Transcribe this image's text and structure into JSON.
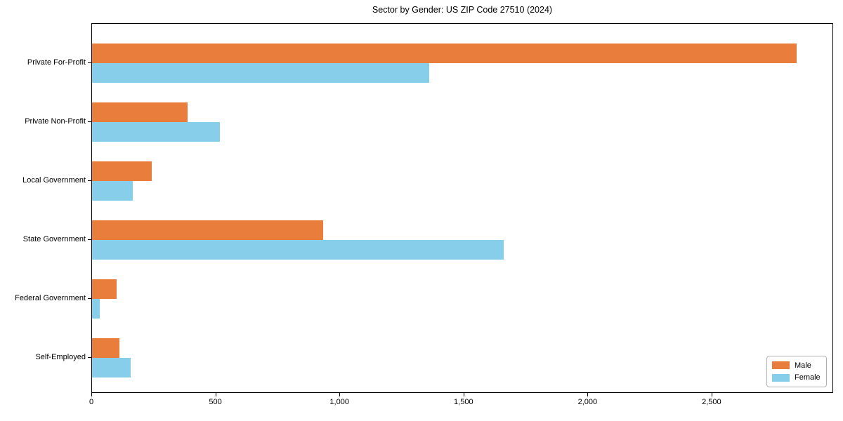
{
  "chart_data": {
    "type": "bar",
    "orientation": "horizontal",
    "title": "Sector by Gender: US ZIP Code 27510 (2024)",
    "categories": [
      "Private For-Profit",
      "Private Non-Profit",
      "Local Government",
      "State Government",
      "Federal Government",
      "Self-Employed"
    ],
    "series": [
      {
        "name": "Male",
        "color": "#E97D3C",
        "values": [
          2840,
          385,
          240,
          930,
          100,
          110
        ]
      },
      {
        "name": "Female",
        "color": "#87CEEB",
        "values": [
          1360,
          515,
          165,
          1660,
          30,
          155
        ]
      }
    ],
    "xlabel": "",
    "ylabel": "",
    "xlim": [
      0,
      2990
    ],
    "x_ticks": [
      0,
      500,
      1000,
      1500,
      2000,
      2500
    ],
    "x_tick_labels": [
      "0",
      "500",
      "1,000",
      "1,500",
      "2,000",
      "2,500"
    ],
    "grid": false,
    "legend_position": "lower right",
    "axis_color": "#000000",
    "background_color": "#ffffff"
  }
}
